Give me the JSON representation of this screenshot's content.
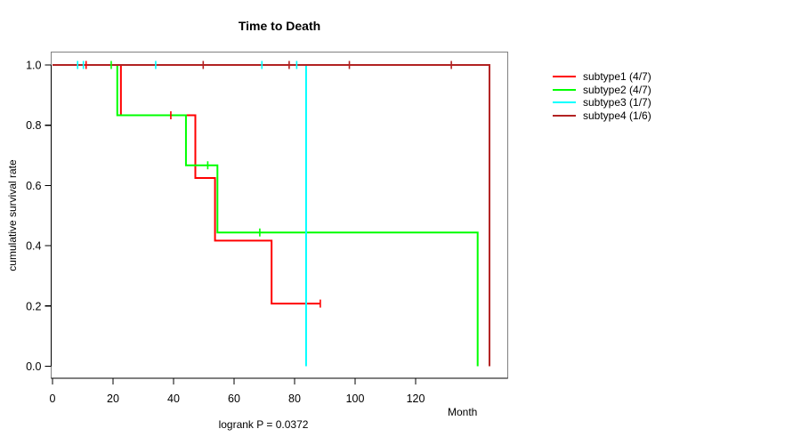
{
  "page": {
    "title": "Time to Death",
    "x_axis_label": "Month",
    "y_axis_label": "cumulative survival rate",
    "footnote": "logrank P = 0.0372"
  },
  "colors": {
    "subtype1": "#ff0000",
    "subtype2": "#00ff00",
    "subtype3": "#00ffff",
    "subtype4": "#b22222",
    "box_border": "#808080",
    "axis": "#000000"
  },
  "chart_data": {
    "type": "line",
    "subtype": "kaplan-meier-step-curves",
    "title": "Time to Death",
    "xlabel": "Month",
    "ylabel": "cumulative survival rate",
    "annotation": "logrank P = 0.0372",
    "xlim": [
      0,
      150
    ],
    "ylim": [
      0.0,
      1.0
    ],
    "xticks": [
      0,
      20,
      40,
      60,
      80,
      100,
      120
    ],
    "yticks": [
      0.0,
      0.2,
      0.4,
      0.6,
      0.8,
      1.0
    ],
    "grid": false,
    "legend_position": "right-outside",
    "series": [
      {
        "name": "subtype1 (4/7)",
        "color": "#ff0000",
        "steps": [
          [
            0,
            1.0
          ],
          [
            22.6,
            0.833
          ],
          [
            47.2,
            0.625
          ],
          [
            53.7,
            0.417
          ],
          [
            72.4,
            0.208
          ],
          [
            88.5,
            0.208
          ]
        ],
        "censor_marks": [
          [
            11.1,
            1.0
          ],
          [
            39.1,
            0.833
          ],
          [
            88.5,
            0.208
          ]
        ]
      },
      {
        "name": "subtype2 (4/7)",
        "color": "#00ff00",
        "steps": [
          [
            0,
            1.0
          ],
          [
            21.4,
            0.833
          ],
          [
            44.1,
            0.667
          ],
          [
            54.5,
            0.444
          ],
          [
            140.5,
            0.0
          ]
        ],
        "censor_marks": [
          [
            19.4,
            1.0
          ],
          [
            51.3,
            0.667
          ],
          [
            68.5,
            0.444
          ]
        ]
      },
      {
        "name": "subtype3 (1/7)",
        "color": "#00ffff",
        "steps": [
          [
            0,
            1.0
          ],
          [
            83.8,
            0.0
          ]
        ],
        "censor_marks": [
          [
            8.3,
            1.0
          ],
          [
            10.2,
            1.0
          ],
          [
            34.1,
            1.0
          ],
          [
            69.2,
            1.0
          ],
          [
            80.7,
            1.0
          ]
        ]
      },
      {
        "name": "subtype4 (1/6)",
        "color": "#b22222",
        "steps": [
          [
            0,
            1.0
          ],
          [
            144.4,
            0.0
          ]
        ],
        "censor_marks": [
          [
            49.8,
            1.0
          ],
          [
            78.2,
            1.0
          ],
          [
            98.1,
            1.0
          ],
          [
            131.8,
            1.0
          ]
        ]
      }
    ]
  }
}
